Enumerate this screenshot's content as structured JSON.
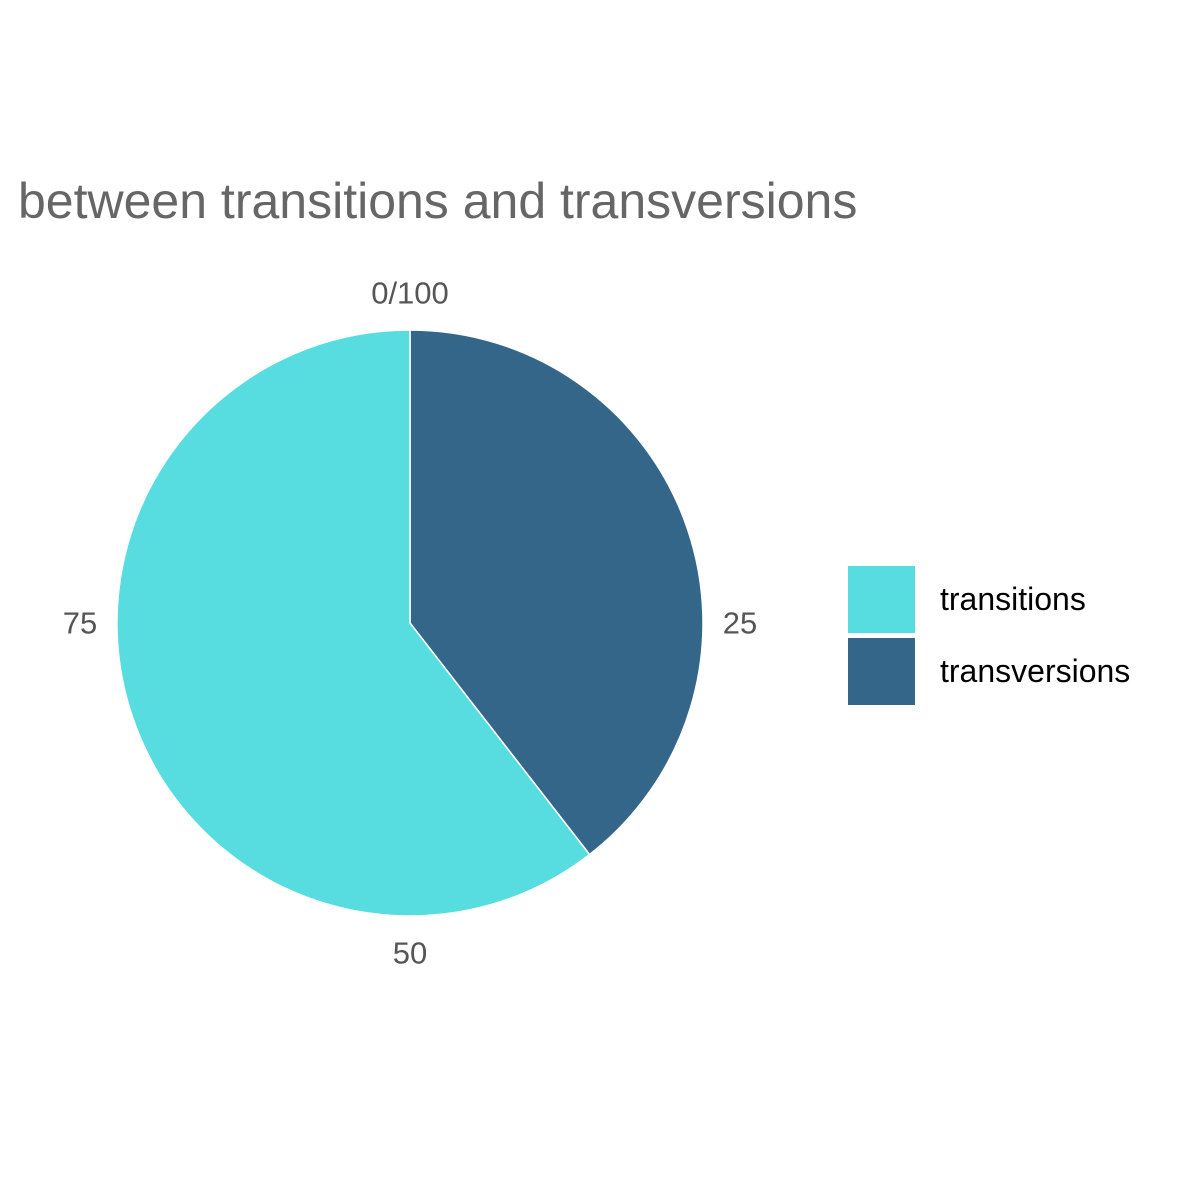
{
  "chart_data": {
    "type": "pie",
    "title": "between transitions and transversions",
    "categories": [
      "transitions",
      "transversions"
    ],
    "values": [
      60.5,
      39.5
    ],
    "scale": [
      0,
      100
    ],
    "start_angle_deg": 0,
    "direction": "clockwise",
    "slice_order": [
      "transversions",
      "transitions"
    ],
    "axis_ticks": [
      {
        "value": 0,
        "label": "0/100"
      },
      {
        "value": 25,
        "label": "25"
      },
      {
        "value": 50,
        "label": "50"
      },
      {
        "value": 75,
        "label": "75"
      }
    ],
    "colors": {
      "transitions": "#57dde0",
      "transversions": "#346689"
    },
    "legend_position": "right",
    "legend": [
      {
        "label": "transitions",
        "color": "#57dde0"
      },
      {
        "label": "transversions",
        "color": "#346689"
      }
    ],
    "grid": false
  }
}
